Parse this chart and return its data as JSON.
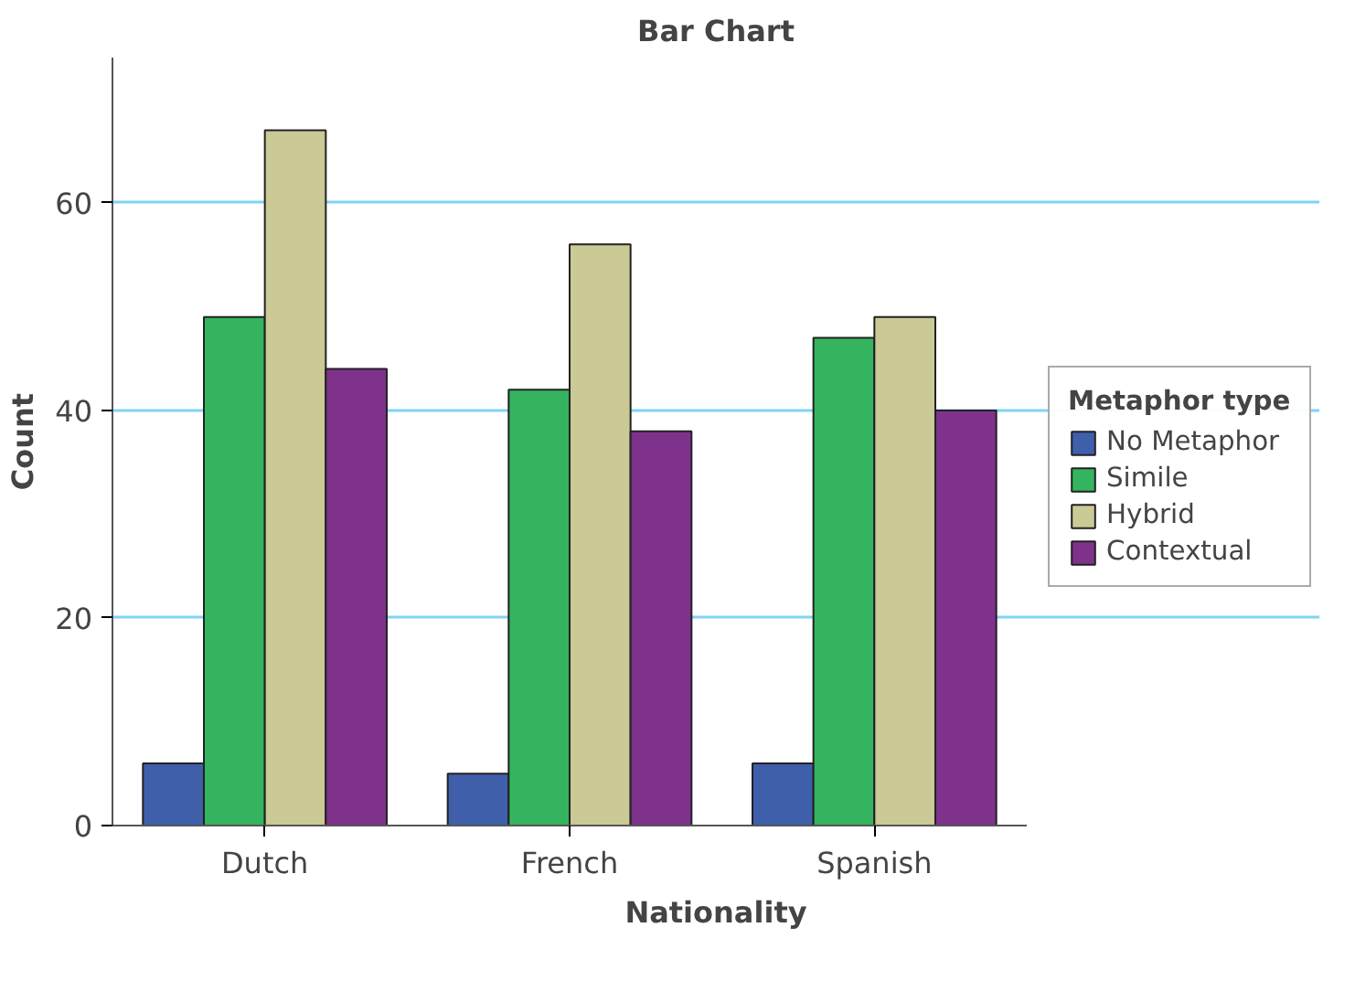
{
  "chart_data": {
    "type": "bar",
    "title": "Bar Chart",
    "xlabel": "Nationality",
    "ylabel": "Count",
    "legend_title": "Metaphor type",
    "categories": [
      "Dutch",
      "French",
      "Spanish"
    ],
    "series": [
      {
        "name": "No Metaphor",
        "color": "#3f5fab",
        "values": [
          6,
          5,
          6
        ]
      },
      {
        "name": "Simile",
        "color": "#34b45e",
        "values": [
          49,
          42,
          47
        ]
      },
      {
        "name": "Hybrid",
        "color": "#cbc995",
        "values": [
          67,
          56,
          49
        ]
      },
      {
        "name": "Contextual",
        "color": "#7f328c",
        "values": [
          44,
          38,
          40
        ]
      }
    ],
    "ylim": [
      0,
      74
    ],
    "yticks": [
      0,
      20,
      40,
      60
    ],
    "grid": "y",
    "legend": "right"
  }
}
